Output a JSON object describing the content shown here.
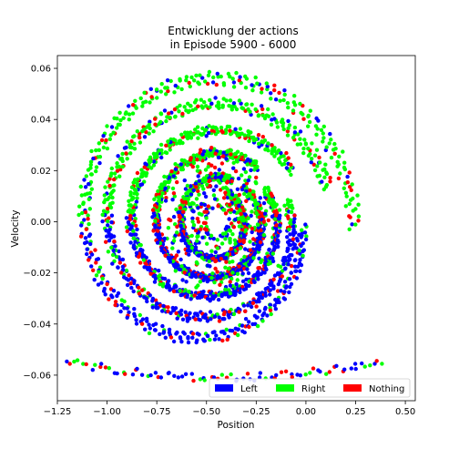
{
  "chart_data": {
    "type": "scatter",
    "title_line1": "Entwicklung der actions",
    "title_line2": "in Episode 5900 - 6000",
    "xlabel": "Position",
    "ylabel": "Velocity",
    "xlim": [
      -1.25,
      0.55
    ],
    "ylim": [
      -0.07,
      0.065
    ],
    "xticks": [
      -1.25,
      -1.0,
      -0.75,
      -0.5,
      -0.25,
      0.0,
      0.25,
      0.5
    ],
    "xtick_labels": [
      "−1.25",
      "−1.00",
      "−0.75",
      "−0.50",
      "−0.25",
      "0.00",
      "0.25",
      "0.50"
    ],
    "yticks": [
      -0.06,
      -0.04,
      -0.02,
      0.0,
      0.02,
      0.04,
      0.06
    ],
    "ytick_labels": [
      "−0.06",
      "−0.04",
      "−0.02",
      "0.00",
      "0.02",
      "0.04",
      "0.06"
    ],
    "legend_position": "lower-right",
    "legend_ncol": 3,
    "series": [
      {
        "name": "Left",
        "color": "#0000ff"
      },
      {
        "name": "Right",
        "color": "#00ff00"
      },
      {
        "name": "Nothing",
        "color": "#ff0000"
      }
    ],
    "spiral": {
      "description_values": "phase-space trajectories of episodes; points lie on spiral arms",
      "center": [
        -0.45,
        0.0
      ],
      "arms": [
        {
          "a_pos": 0.75,
          "a_vel": 0.062,
          "x_shift": -0.05,
          "phase": 0.0
        },
        {
          "a_pos": 0.62,
          "a_vel": 0.05,
          "x_shift": -0.03,
          "phase": 0.3
        },
        {
          "a_pos": 0.48,
          "a_vel": 0.038,
          "x_shift": -0.02,
          "phase": 0.6
        },
        {
          "a_pos": 0.34,
          "a_vel": 0.028,
          "x_shift": -0.01,
          "phase": 0.9
        },
        {
          "a_pos": 0.2,
          "a_vel": 0.018,
          "x_shift": 0.0,
          "phase": 1.2
        }
      ]
    }
  }
}
